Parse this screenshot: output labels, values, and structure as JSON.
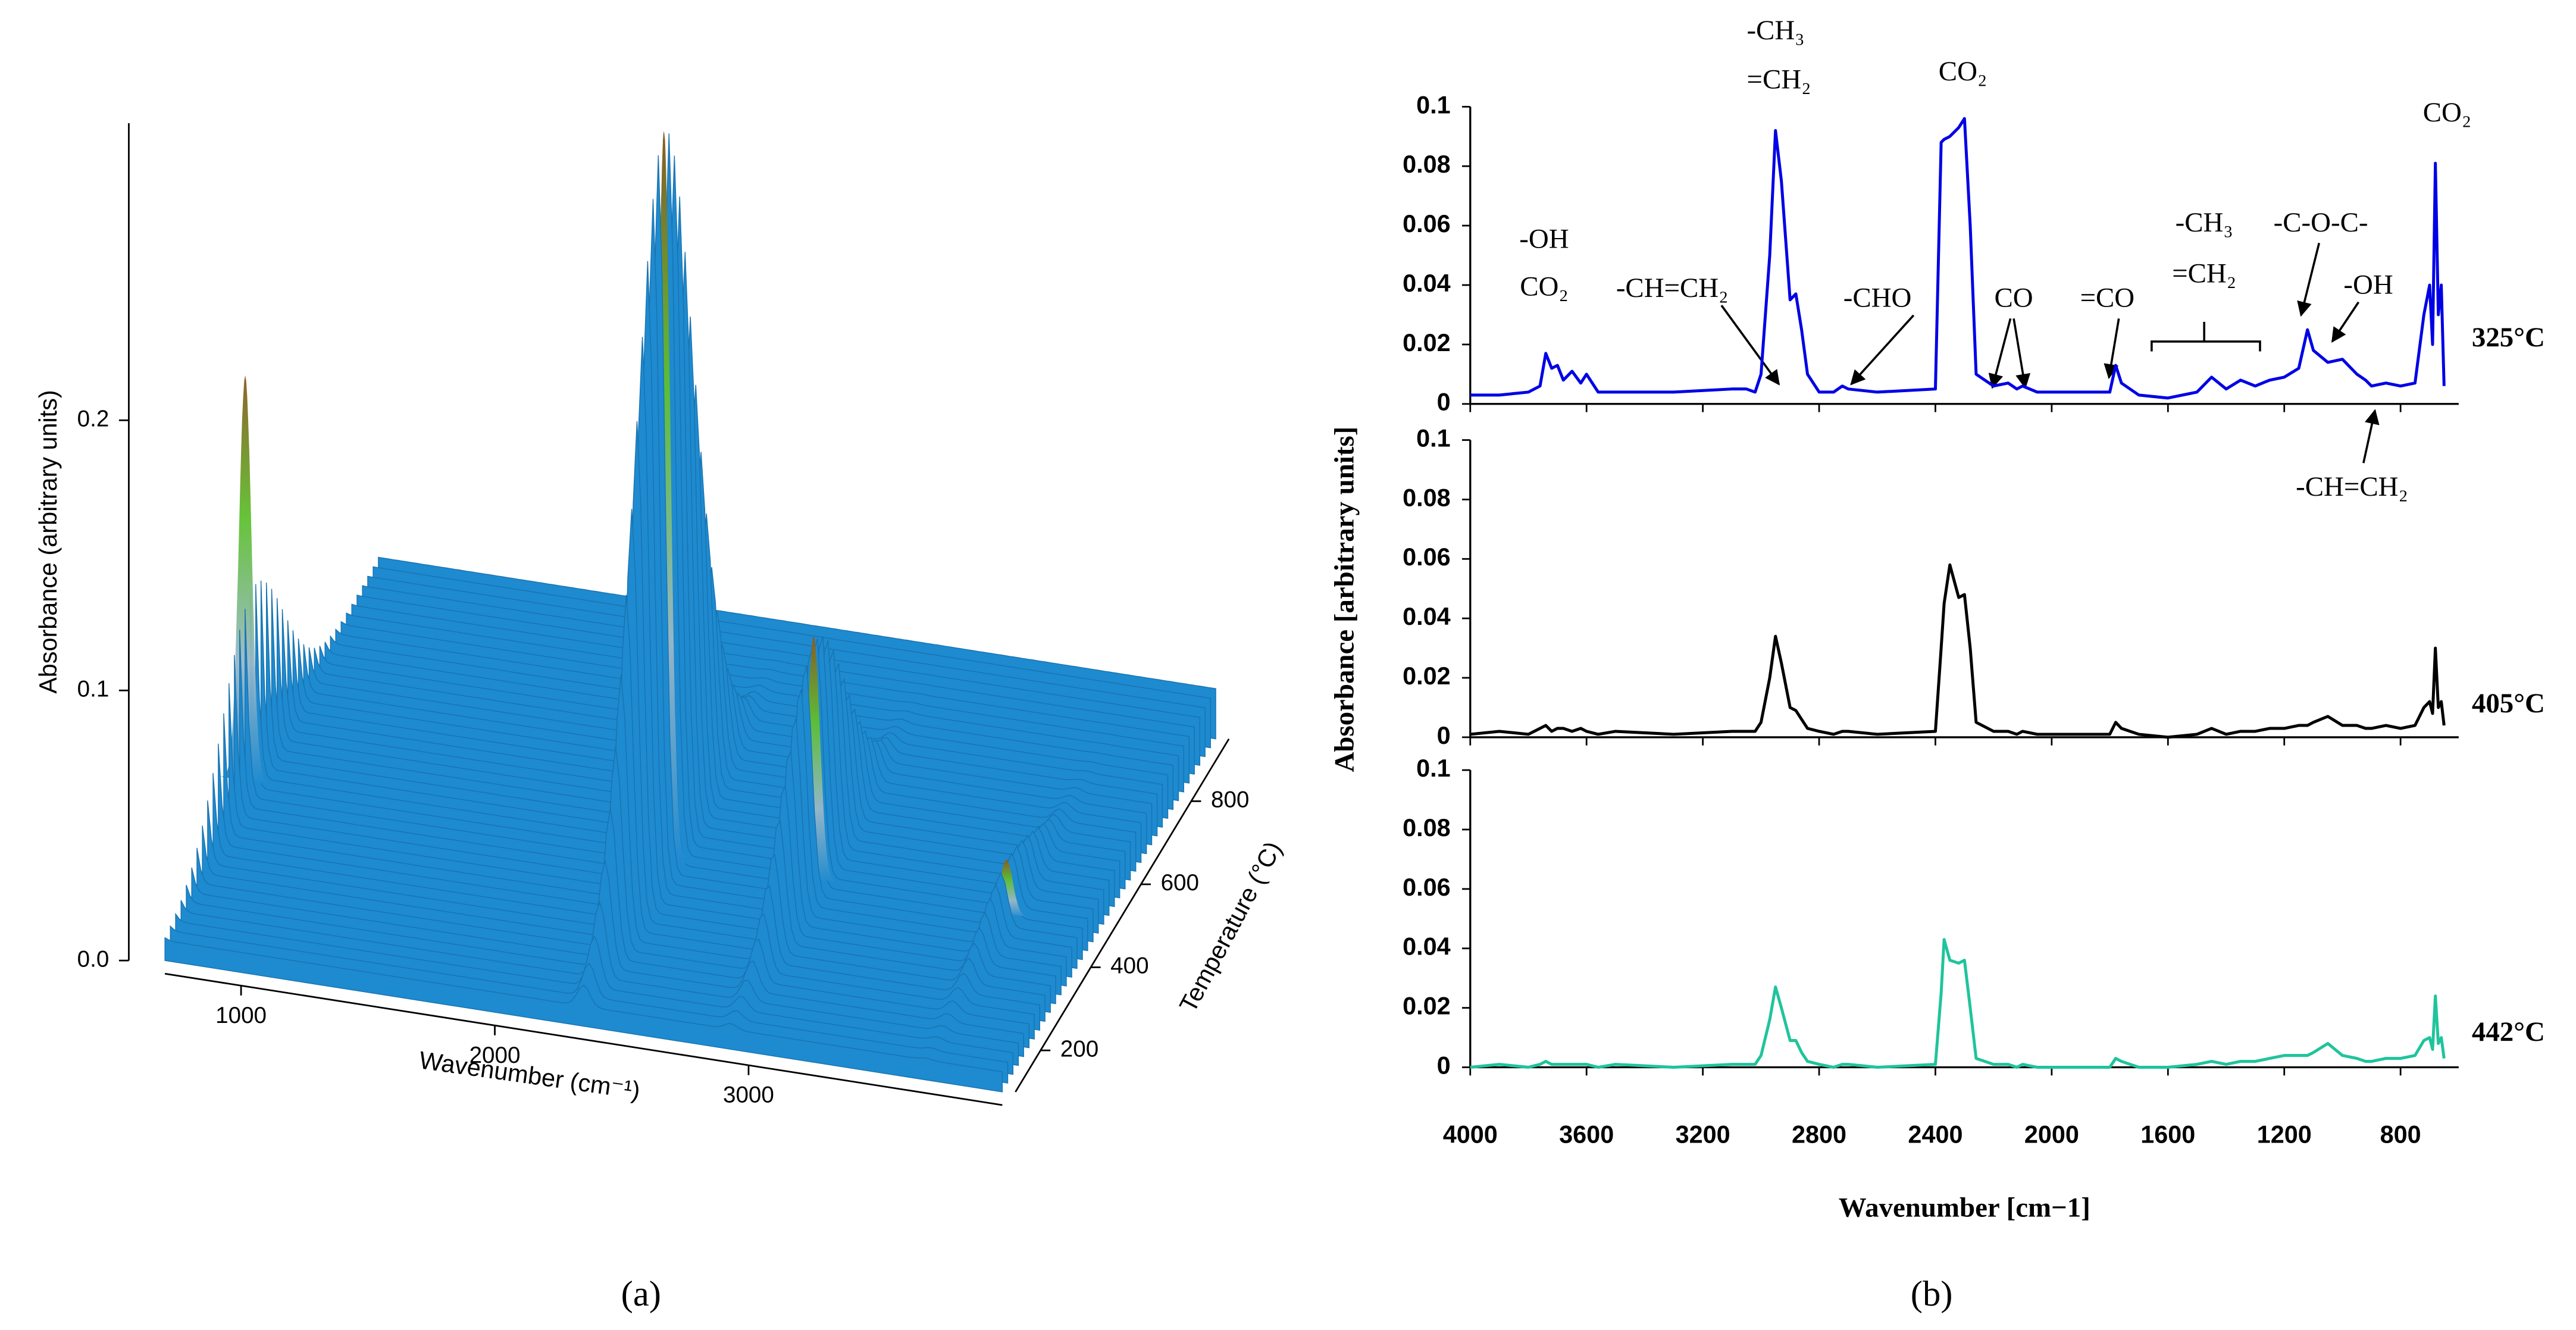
{
  "chart_data": [
    {
      "type": "surface3d",
      "label": "(a)",
      "zlabel": "Absorbance (arbitrary units)",
      "xlabel": "Wavenumber (cm⁻¹)",
      "ylabel": "Temperature (°C)",
      "xlim": [
        700,
        4000
      ],
      "xticks": [
        1000,
        2000,
        3000
      ],
      "ylim": [
        100,
        950
      ],
      "yticks": [
        200,
        400,
        600,
        800
      ],
      "zlim": [
        0,
        0.31
      ],
      "zticks": [
        {
          "value": 0,
          "label": "0.0"
        },
        0.1,
        0.2
      ],
      "color": "#1e8ad0",
      "peaks": {
        "x": [
          670,
          2350,
          2930,
          3700
        ],
        "t": [
          450,
          420,
          430,
          420
        ],
        "values": [
          0.15,
          0.27,
          0.09,
          0.02
        ]
      }
    },
    {
      "type": "line",
      "label": "(b)",
      "ylabel": "Absorbance [arbitrary units]",
      "xlabel": "Wavenumber [cm−1]",
      "xlim": [
        4000,
        600
      ],
      "xticks": [
        4000,
        3600,
        3200,
        2800,
        2400,
        2000,
        1600,
        1200,
        800
      ],
      "ylim": [
        0,
        0.1
      ],
      "yticks": [
        0,
        0.02,
        0.04,
        0.06,
        0.08,
        0.1
      ],
      "x": [
        4000,
        3900,
        3800,
        3760,
        3740,
        3720,
        3700,
        3680,
        3650,
        3620,
        3600,
        3560,
        3500,
        3300,
        3100,
        3050,
        3020,
        3000,
        2970,
        2950,
        2930,
        2900,
        2880,
        2860,
        2840,
        2800,
        2750,
        2720,
        2700,
        2600,
        2400,
        2380,
        2370,
        2350,
        2320,
        2300,
        2280,
        2260,
        2200,
        2150,
        2120,
        2100,
        2050,
        2000,
        1900,
        1800,
        1780,
        1760,
        1700,
        1600,
        1500,
        1450,
        1400,
        1350,
        1300,
        1250,
        1200,
        1150,
        1120,
        1100,
        1050,
        1000,
        950,
        920,
        900,
        850,
        800,
        750,
        720,
        700,
        690,
        680,
        670,
        660,
        650
      ],
      "series": [
        {
          "name": "325°C",
          "color": "#0000e6",
          "values": [
            0.003,
            0.003,
            0.004,
            0.006,
            0.017,
            0.012,
            0.013,
            0.008,
            0.011,
            0.007,
            0.01,
            0.004,
            0.004,
            0.004,
            0.005,
            0.005,
            0.004,
            0.01,
            0.05,
            0.092,
            0.075,
            0.035,
            0.037,
            0.025,
            0.01,
            0.004,
            0.004,
            0.006,
            0.005,
            0.004,
            0.005,
            0.088,
            0.089,
            0.09,
            0.093,
            0.096,
            0.06,
            0.01,
            0.006,
            0.007,
            0.005,
            0.006,
            0.004,
            0.004,
            0.004,
            0.004,
            0.013,
            0.007,
            0.003,
            0.002,
            0.004,
            0.009,
            0.005,
            0.008,
            0.006,
            0.008,
            0.009,
            0.012,
            0.025,
            0.018,
            0.014,
            0.015,
            0.01,
            0.008,
            0.006,
            0.007,
            0.006,
            0.007,
            0.03,
            0.04,
            0.02,
            0.081,
            0.03,
            0.04,
            0.006
          ]
        },
        {
          "name": "405°C",
          "color": "#000000",
          "values": [
            0.001,
            0.002,
            0.001,
            0.003,
            0.004,
            0.002,
            0.003,
            0.003,
            0.002,
            0.003,
            0.002,
            0.001,
            0.002,
            0.001,
            0.002,
            0.002,
            0.002,
            0.005,
            0.02,
            0.034,
            0.025,
            0.01,
            0.009,
            0.006,
            0.003,
            0.002,
            0.001,
            0.002,
            0.002,
            0.001,
            0.002,
            0.03,
            0.045,
            0.058,
            0.047,
            0.048,
            0.03,
            0.005,
            0.002,
            0.002,
            0.001,
            0.002,
            0.001,
            0.001,
            0.001,
            0.001,
            0.005,
            0.003,
            0.001,
            0,
            0.001,
            0.003,
            0.001,
            0.002,
            0.002,
            0.003,
            0.003,
            0.004,
            0.004,
            0.005,
            0.007,
            0.004,
            0.004,
            0.003,
            0.003,
            0.004,
            0.003,
            0.004,
            0.01,
            0.012,
            0.008,
            0.03,
            0.01,
            0.012,
            0.004
          ]
        },
        {
          "name": "442°C",
          "color": "#1fc49c",
          "values": [
            0,
            0.001,
            0,
            0.001,
            0.002,
            0.001,
            0.001,
            0.001,
            0.001,
            0.001,
            0.001,
            0,
            0.001,
            0,
            0.001,
            0.001,
            0.001,
            0.004,
            0.016,
            0.027,
            0.02,
            0.009,
            0.009,
            0.005,
            0.002,
            0.001,
            0,
            0.001,
            0.001,
            0,
            0.001,
            0.025,
            0.043,
            0.036,
            0.035,
            0.036,
            0.02,
            0.003,
            0.001,
            0.001,
            0,
            0.001,
            0,
            0,
            0,
            0,
            0.003,
            0.002,
            0,
            0,
            0.001,
            0.002,
            0.001,
            0.002,
            0.002,
            0.003,
            0.004,
            0.004,
            0.004,
            0.005,
            0.008,
            0.004,
            0.003,
            0.002,
            0.002,
            0.003,
            0.003,
            0.004,
            0.009,
            0.01,
            0.006,
            0.024,
            0.008,
            0.01,
            0.003
          ]
        }
      ],
      "annotations": [
        "-OH",
        "CO₂",
        "-CH=CH₂",
        "-CH₃",
        "=CH₂",
        "CO₂",
        "-CHO",
        "CO",
        "=CO",
        "-CH₃",
        "=CH₂",
        "-C-O-C-",
        "-OH",
        "CO₂",
        "-CH=CH₂"
      ]
    }
  ]
}
